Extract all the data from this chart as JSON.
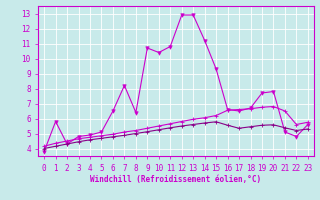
{
  "xlabel": "Windchill (Refroidissement éolien,°C)",
  "background_color": "#c8eaea",
  "grid_color": "#aacccc",
  "line_color1": "#cc00cc",
  "line_color2": "#880088",
  "line_color3": "#660044",
  "xlim": [
    -0.5,
    23.5
  ],
  "ylim": [
    3.5,
    13.5
  ],
  "yticks": [
    4,
    5,
    6,
    7,
    8,
    9,
    10,
    11,
    12,
    13
  ],
  "xticks": [
    0,
    1,
    2,
    3,
    4,
    5,
    6,
    7,
    8,
    9,
    10,
    11,
    12,
    13,
    14,
    15,
    16,
    17,
    18,
    19,
    20,
    21,
    22,
    23
  ],
  "series1_x": [
    0,
    1,
    2,
    3,
    4,
    5,
    6,
    7,
    8,
    9,
    10,
    11,
    12,
    13,
    14,
    15,
    16,
    17,
    18,
    19,
    20,
    21,
    22,
    23
  ],
  "series1_y": [
    3.8,
    5.8,
    4.3,
    4.8,
    4.9,
    5.1,
    6.5,
    8.2,
    6.4,
    10.7,
    10.4,
    10.8,
    12.9,
    12.9,
    11.2,
    9.3,
    6.6,
    6.5,
    6.7,
    7.7,
    7.8,
    5.1,
    4.8,
    5.6
  ],
  "series2_x": [
    0,
    1,
    2,
    3,
    4,
    5,
    6,
    7,
    8,
    9,
    10,
    11,
    12,
    13,
    14,
    15,
    16,
    17,
    18,
    19,
    20,
    21,
    22,
    23
  ],
  "series2_y": [
    4.15,
    4.35,
    4.5,
    4.65,
    4.75,
    4.85,
    4.95,
    5.1,
    5.2,
    5.35,
    5.5,
    5.65,
    5.8,
    5.95,
    6.05,
    6.2,
    6.55,
    6.6,
    6.65,
    6.75,
    6.8,
    6.5,
    5.6,
    5.75
  ],
  "series3_x": [
    0,
    1,
    2,
    3,
    4,
    5,
    6,
    7,
    8,
    9,
    10,
    11,
    12,
    13,
    14,
    15,
    16,
    17,
    18,
    19,
    20,
    21,
    22,
    23
  ],
  "series3_y": [
    4.0,
    4.15,
    4.3,
    4.45,
    4.58,
    4.68,
    4.78,
    4.88,
    5.0,
    5.12,
    5.25,
    5.38,
    5.5,
    5.6,
    5.7,
    5.78,
    5.55,
    5.35,
    5.45,
    5.55,
    5.58,
    5.38,
    5.2,
    5.3
  ]
}
